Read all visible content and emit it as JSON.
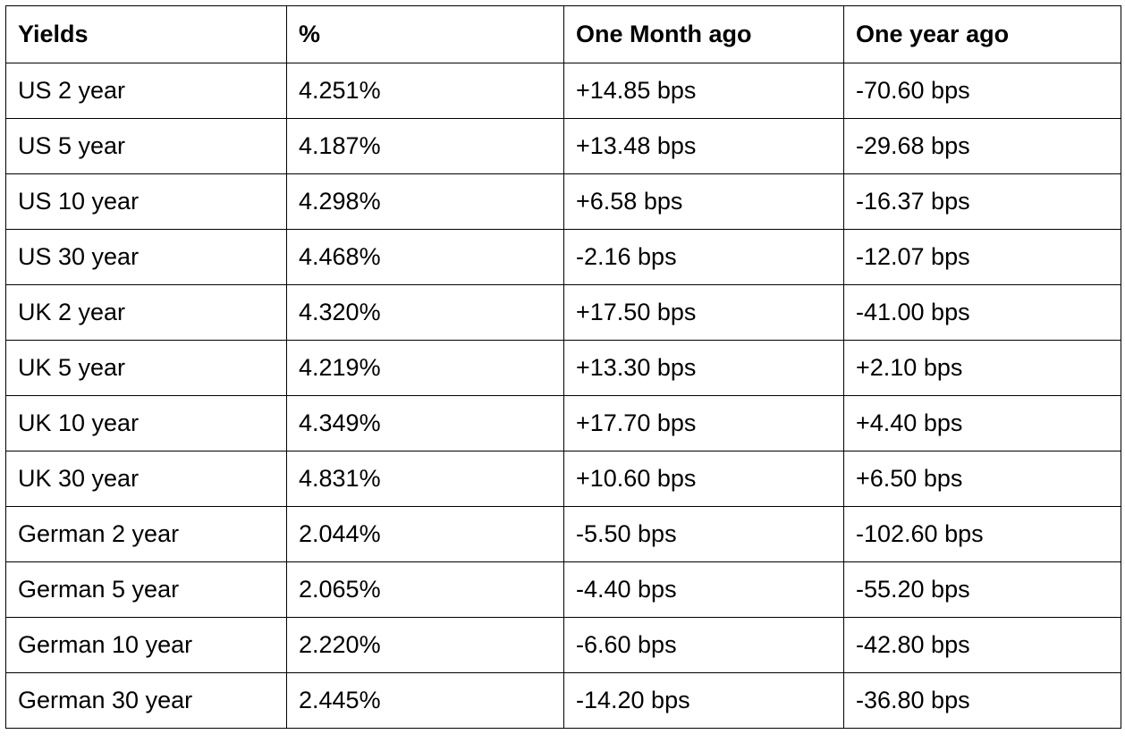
{
  "table": {
    "headers": [
      "Yields",
      "%",
      "One Month ago",
      "One year ago"
    ],
    "rows": [
      [
        "US 2 year",
        "4.251%",
        "+14.85 bps",
        "-70.60 bps"
      ],
      [
        "US 5 year",
        "4.187%",
        "+13.48 bps",
        "-29.68 bps"
      ],
      [
        "US 10 year",
        "4.298%",
        "+6.58 bps",
        "-16.37 bps"
      ],
      [
        "US 30 year",
        "4.468%",
        "-2.16 bps",
        "-12.07 bps"
      ],
      [
        "UK 2 year",
        "4.320%",
        "+17.50 bps",
        "-41.00 bps"
      ],
      [
        "UK 5 year",
        "4.219%",
        "+13.30 bps",
        "+2.10 bps"
      ],
      [
        "UK 10 year",
        "4.349%",
        "+17.70 bps",
        "+4.40 bps"
      ],
      [
        "UK 30 year",
        "4.831%",
        "+10.60 bps",
        "+6.50 bps"
      ],
      [
        "German 2 year",
        "2.044%",
        "-5.50 bps",
        "-102.60 bps"
      ],
      [
        "German 5 year",
        "2.065%",
        "-4.40 bps",
        "-55.20 bps"
      ],
      [
        "German 10 year",
        "2.220%",
        "-6.60 bps",
        "-42.80 bps"
      ],
      [
        "German 30 year",
        "2.445%",
        "-14.20 bps",
        "-36.80 bps"
      ]
    ]
  }
}
